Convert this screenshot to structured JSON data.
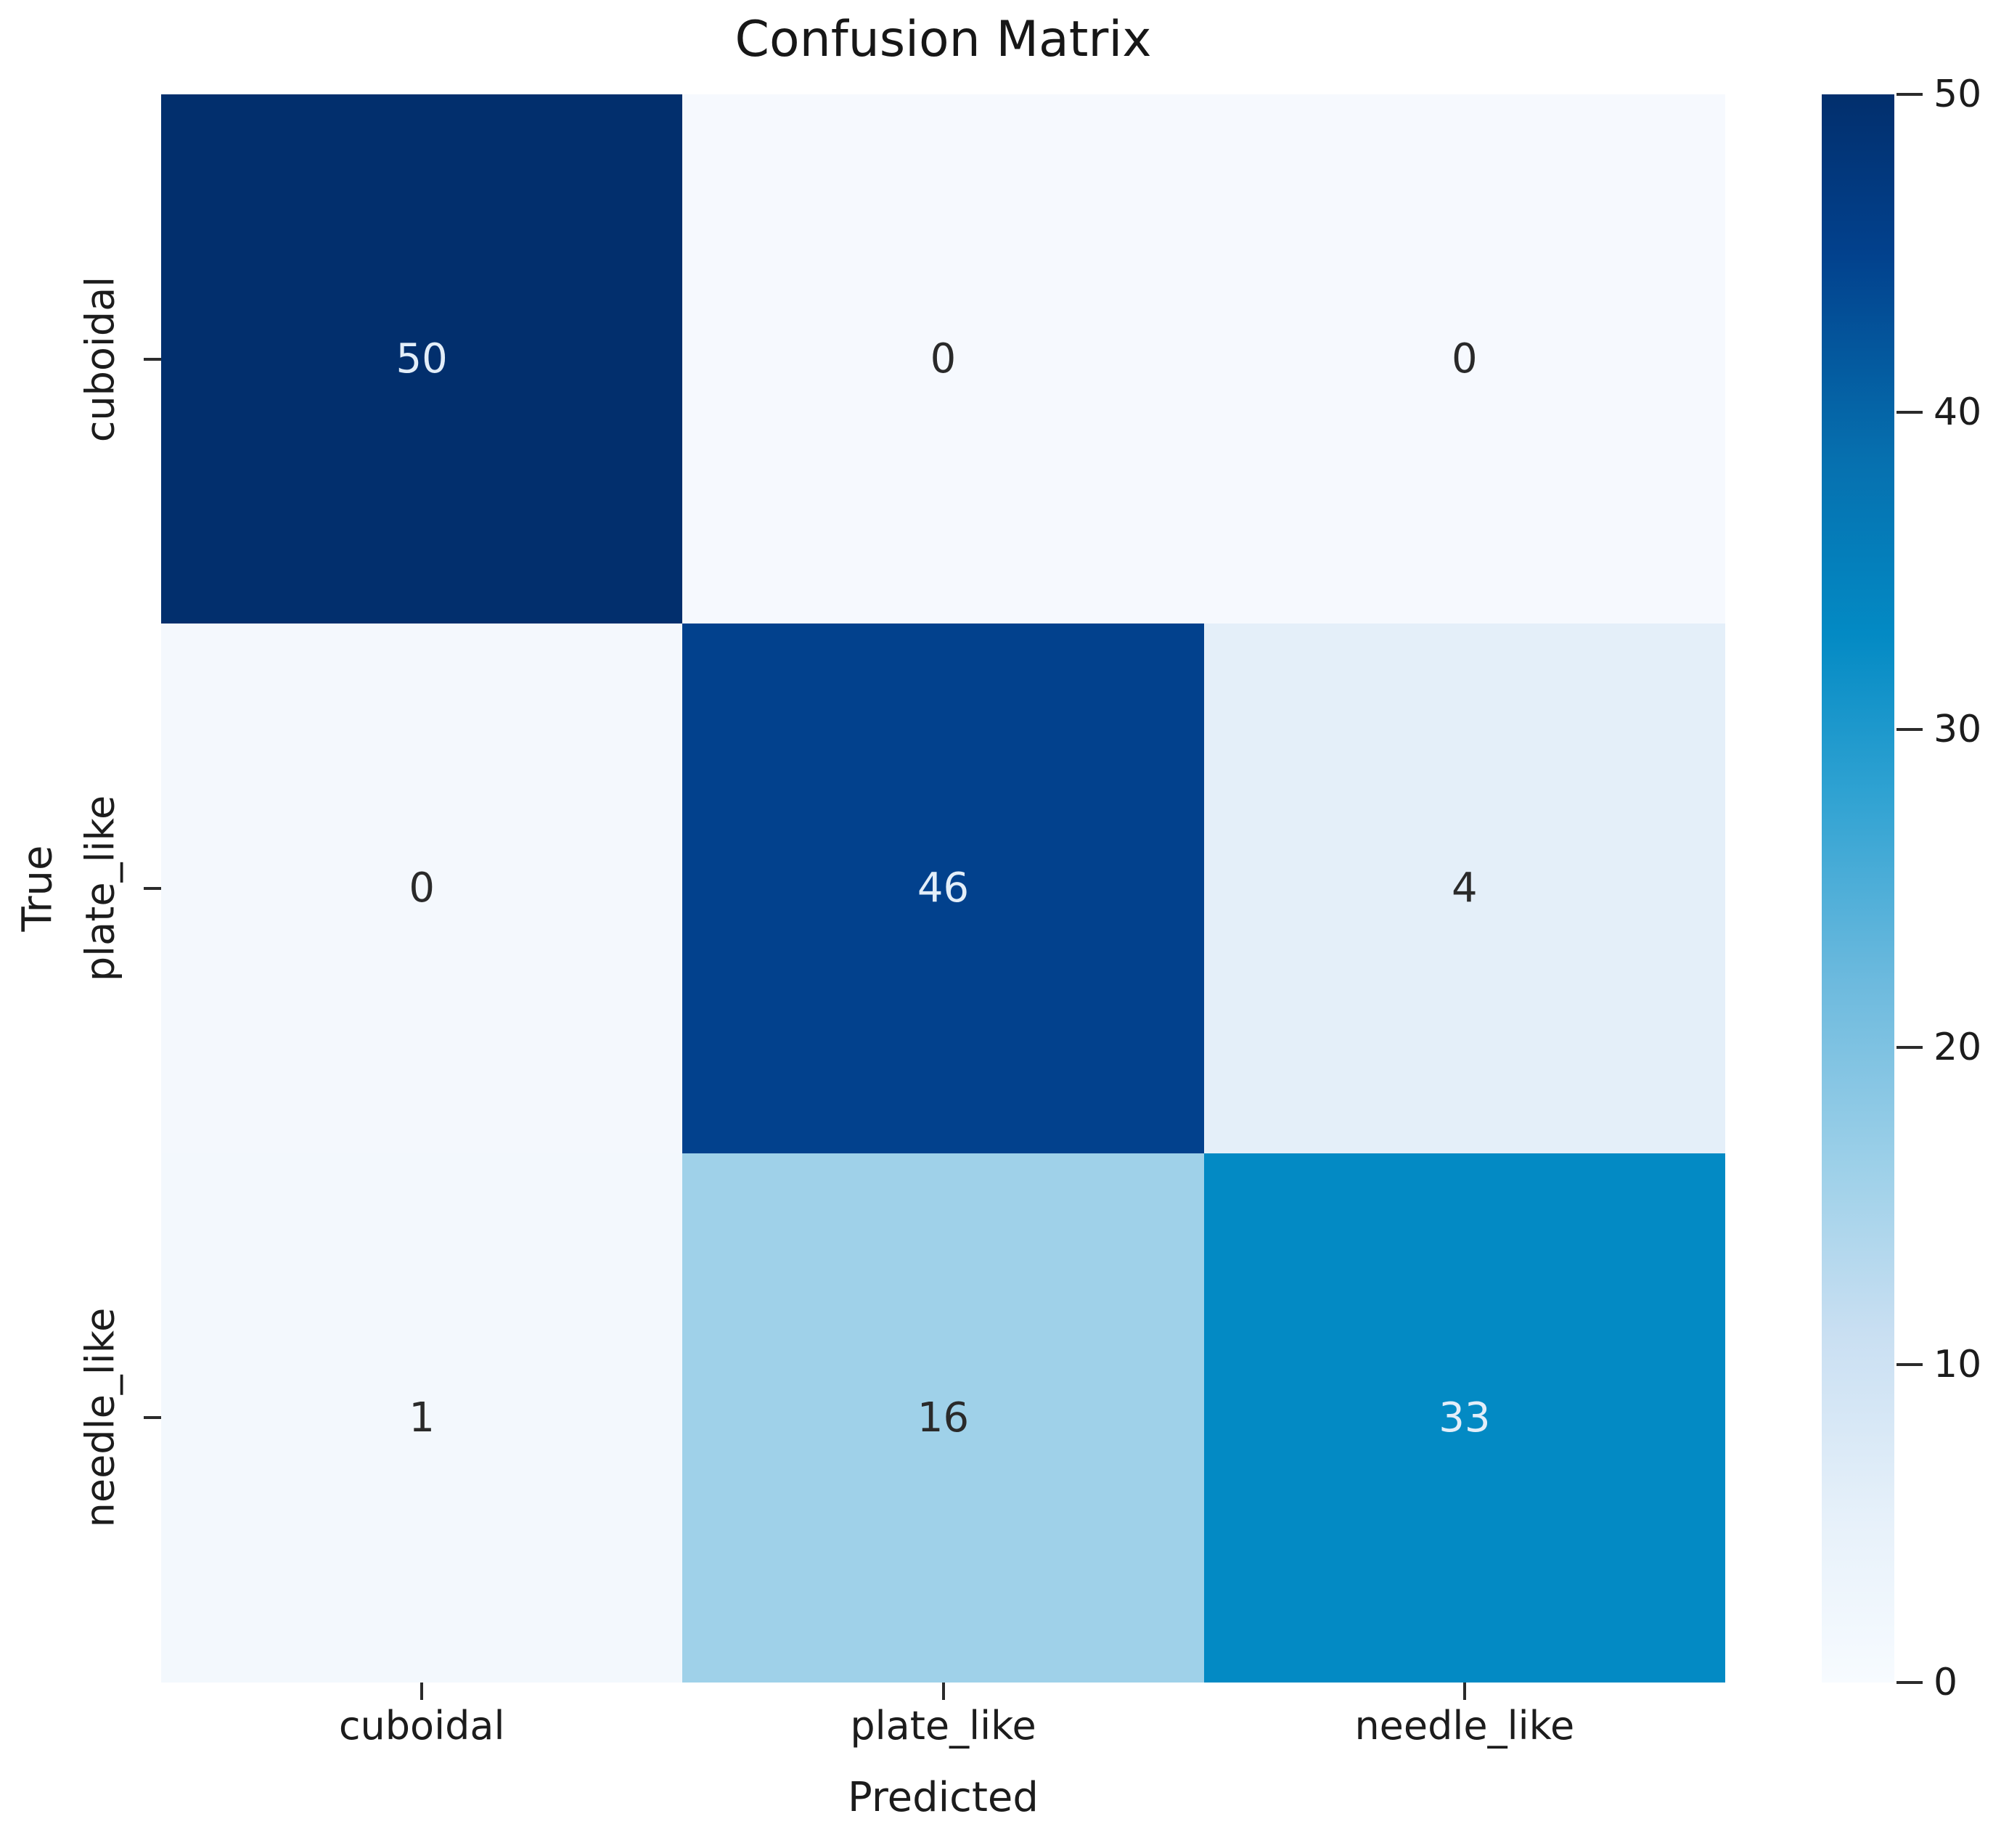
{
  "chart_data": {
    "type": "heatmap",
    "title": "Confusion Matrix",
    "xlabel": "Predicted",
    "ylabel": "True",
    "x_categories": [
      "cuboidal",
      "plate_like",
      "needle_like"
    ],
    "y_categories": [
      "cuboidal",
      "plate_like",
      "needle_like"
    ],
    "matrix": [
      [
        50,
        0,
        0
      ],
      [
        0,
        46,
        4
      ],
      [
        1,
        16,
        33
      ]
    ],
    "value_range": [
      0,
      50
    ],
    "cell_colors": [
      [
        "#022f6d",
        "#f6f9fe",
        "#f6f9fe"
      ],
      [
        "#f4f8fd",
        "#02418d",
        "#e4eff9"
      ],
      [
        "#f3f8fd",
        "#9fd1e9",
        "#038ac4"
      ]
    ],
    "colorbar": {
      "ticks": [
        0,
        10,
        20,
        30,
        40,
        50
      ],
      "cmap_stops": [
        {
          "color": "#f7fbff",
          "pos": 0
        },
        {
          "color": "#e7f1fa",
          "pos": 10
        },
        {
          "color": "#c9dff2",
          "pos": 22
        },
        {
          "color": "#9fd1e9",
          "pos": 32
        },
        {
          "color": "#6dbade",
          "pos": 44
        },
        {
          "color": "#2fa2d2",
          "pos": 56
        },
        {
          "color": "#038ac4",
          "pos": 66
        },
        {
          "color": "#0670af",
          "pos": 77
        },
        {
          "color": "#02418d",
          "pos": 90
        },
        {
          "color": "#022f6d",
          "pos": 100
        }
      ]
    },
    "colors": {
      "annot_light": "#e3eef9",
      "annot_dark": "#2a2a2a",
      "axis_text": "#1c1c1c",
      "background": "#ffffff"
    }
  }
}
